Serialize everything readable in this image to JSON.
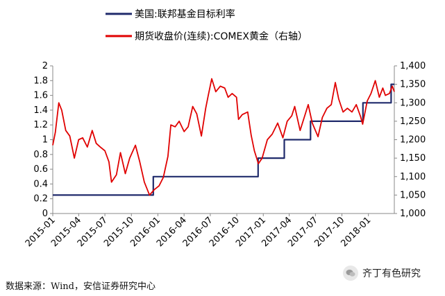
{
  "chart_data": {
    "type": "line",
    "legend": {
      "placement": "top-left",
      "entries": [
        {
          "label": "美国:联邦基金目标利率",
          "color": "#1f2a6b"
        },
        {
          "label": "期货收盘价(连续):COMEX黄金（右轴）",
          "color": "#e00000"
        }
      ]
    },
    "x_ticks": [
      "2015-01",
      "2015-04",
      "2015-07",
      "2015-10",
      "2016-01",
      "2016-04",
      "2016-07",
      "2016-10",
      "2017-01",
      "2017-04",
      "2017-07",
      "2017-10",
      "2018-01"
    ],
    "x_range": [
      "2015-01",
      "2018-04"
    ],
    "y_left": {
      "min": 0,
      "max": 2,
      "ticks": [
        "0",
        "0.2",
        "0.4",
        "0.6",
        "0.8",
        "1",
        "1.2",
        "1.4",
        "1.6",
        "1.8",
        "2"
      ]
    },
    "y_right": {
      "min": 1000,
      "max": 1400,
      "ticks": [
        "1,000",
        "1,050",
        "1,100",
        "1,150",
        "1,200",
        "1,250",
        "1,300",
        "1,350",
        "1,400"
      ]
    },
    "grid": false,
    "series": [
      {
        "name": "美国:联邦基金目标利率",
        "axis": "left",
        "color": "#1f2a6b",
        "step": true,
        "points": [
          [
            "2015-01-01",
            0.25
          ],
          [
            "2015-12-16",
            0.5
          ],
          [
            "2016-12-14",
            0.75
          ],
          [
            "2017-03-15",
            1.0
          ],
          [
            "2017-06-14",
            1.25
          ],
          [
            "2017-12-13",
            1.5
          ],
          [
            "2018-03-21",
            1.75
          ],
          [
            "2018-04-01",
            1.75
          ]
        ]
      },
      {
        "name": "期货收盘价(连续):COMEX黄金（右轴）",
        "axis": "right",
        "color": "#e00000",
        "step": false,
        "points": [
          [
            "2015-01-01",
            1185
          ],
          [
            "2015-01-10",
            1220
          ],
          [
            "2015-01-22",
            1300
          ],
          [
            "2015-02-01",
            1280
          ],
          [
            "2015-02-15",
            1225
          ],
          [
            "2015-03-01",
            1210
          ],
          [
            "2015-03-17",
            1150
          ],
          [
            "2015-04-01",
            1200
          ],
          [
            "2015-04-15",
            1205
          ],
          [
            "2015-05-01",
            1180
          ],
          [
            "2015-05-18",
            1225
          ],
          [
            "2015-06-01",
            1190
          ],
          [
            "2015-06-15",
            1180
          ],
          [
            "2015-07-01",
            1170
          ],
          [
            "2015-07-15",
            1140
          ],
          [
            "2015-07-24",
            1085
          ],
          [
            "2015-08-10",
            1105
          ],
          [
            "2015-08-24",
            1165
          ],
          [
            "2015-09-10",
            1108
          ],
          [
            "2015-09-25",
            1150
          ],
          [
            "2015-10-15",
            1185
          ],
          [
            "2015-10-30",
            1140
          ],
          [
            "2015-11-15",
            1085
          ],
          [
            "2015-12-03",
            1050
          ],
          [
            "2015-12-20",
            1065
          ],
          [
            "2016-01-05",
            1075
          ],
          [
            "2016-01-20",
            1098
          ],
          [
            "2016-02-05",
            1155
          ],
          [
            "2016-02-15",
            1240
          ],
          [
            "2016-03-01",
            1235
          ],
          [
            "2016-03-15",
            1250
          ],
          [
            "2016-04-01",
            1222
          ],
          [
            "2016-04-15",
            1235
          ],
          [
            "2016-05-01",
            1290
          ],
          [
            "2016-05-15",
            1270
          ],
          [
            "2016-05-31",
            1210
          ],
          [
            "2016-06-15",
            1285
          ],
          [
            "2016-06-24",
            1320
          ],
          [
            "2016-07-06",
            1365
          ],
          [
            "2016-07-20",
            1330
          ],
          [
            "2016-08-05",
            1345
          ],
          [
            "2016-08-20",
            1340
          ],
          [
            "2016-09-01",
            1315
          ],
          [
            "2016-09-15",
            1325
          ],
          [
            "2016-09-30",
            1315
          ],
          [
            "2016-10-07",
            1255
          ],
          [
            "2016-10-20",
            1268
          ],
          [
            "2016-11-08",
            1275
          ],
          [
            "2016-11-20",
            1212
          ],
          [
            "2016-12-01",
            1170
          ],
          [
            "2016-12-15",
            1135
          ],
          [
            "2016-12-28",
            1150
          ],
          [
            "2017-01-15",
            1200
          ],
          [
            "2017-02-01",
            1215
          ],
          [
            "2017-02-20",
            1245
          ],
          [
            "2017-03-10",
            1205
          ],
          [
            "2017-03-25",
            1250
          ],
          [
            "2017-04-10",
            1265
          ],
          [
            "2017-04-20",
            1290
          ],
          [
            "2017-05-09",
            1225
          ],
          [
            "2017-05-25",
            1265
          ],
          [
            "2017-06-06",
            1295
          ],
          [
            "2017-06-20",
            1245
          ],
          [
            "2017-07-10",
            1208
          ],
          [
            "2017-07-25",
            1260
          ],
          [
            "2017-08-10",
            1285
          ],
          [
            "2017-08-25",
            1295
          ],
          [
            "2017-09-08",
            1355
          ],
          [
            "2017-09-20",
            1310
          ],
          [
            "2017-10-05",
            1275
          ],
          [
            "2017-10-20",
            1285
          ],
          [
            "2017-11-05",
            1275
          ],
          [
            "2017-11-20",
            1295
          ],
          [
            "2017-12-05",
            1262
          ],
          [
            "2017-12-12",
            1242
          ],
          [
            "2017-12-28",
            1305
          ],
          [
            "2018-01-10",
            1325
          ],
          [
            "2018-01-25",
            1360
          ],
          [
            "2018-02-08",
            1315
          ],
          [
            "2018-02-20",
            1340
          ],
          [
            "2018-03-01",
            1320
          ],
          [
            "2018-03-15",
            1325
          ],
          [
            "2018-03-25",
            1345
          ],
          [
            "2018-04-01",
            1330
          ]
        ]
      }
    ]
  },
  "source_text": "数据来源：Wind，安信证券研究中心",
  "watermark": {
    "text": "齐丁有色研究",
    "icon": "wechat-icon"
  }
}
